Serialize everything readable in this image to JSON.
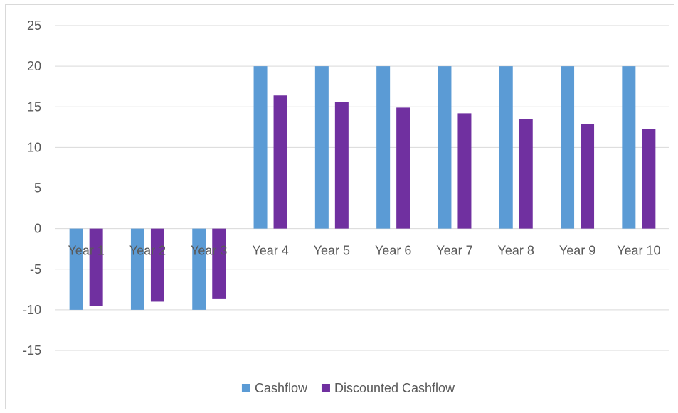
{
  "chart_data": {
    "type": "bar",
    "title": "",
    "xlabel": "",
    "ylabel": "",
    "categories": [
      "Year 1",
      "Year 2",
      "Year 3",
      "Year 4",
      "Year 5",
      "Year 6",
      "Year 7",
      "Year 8",
      "Year 9",
      "Year 10"
    ],
    "series": [
      {
        "name": "Cashflow",
        "color": "#5b9bd5",
        "values": [
          -10,
          -10,
          -10,
          20,
          20,
          20,
          20,
          20,
          20,
          20
        ]
      },
      {
        "name": "Discounted Cashflow",
        "color": "#7030a0",
        "values": [
          -9.5,
          -9.0,
          -8.6,
          16.4,
          15.6,
          14.9,
          14.2,
          13.5,
          12.9,
          12.3
        ]
      }
    ],
    "ylim": [
      -15,
      25
    ],
    "yticks": [
      25,
      20,
      15,
      10,
      5,
      0,
      -5,
      -10,
      -15
    ],
    "grid": true,
    "legend": "bottom-center"
  }
}
